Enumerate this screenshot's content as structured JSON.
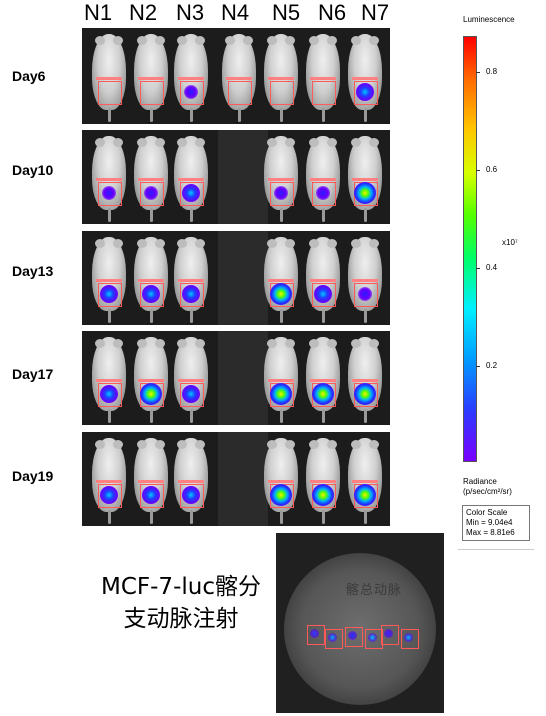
{
  "columns": [
    "N1",
    "N2",
    "N3",
    "N4",
    "N5",
    "N6",
    "N7"
  ],
  "days": [
    "Day6",
    "Day10",
    "Day13",
    "Day17",
    "Day19"
  ],
  "color_scale": {
    "title": "Luminescence",
    "ticks": [
      "0.8",
      "0.6",
      "0.4",
      "0.2"
    ],
    "multiplier": "x10⁷",
    "radiance_label": "Radiance",
    "radiance_units": "(p/sec/cm²/sr)",
    "box_title": "Color Scale",
    "min_label": "Min = 9.04e4",
    "max_label": "Max = 8.81e6"
  },
  "caption": {
    "line1": "MCF-7-luc髂分",
    "line2": "支动脉注射"
  },
  "dish_handwriting": "髂总动脉"
}
